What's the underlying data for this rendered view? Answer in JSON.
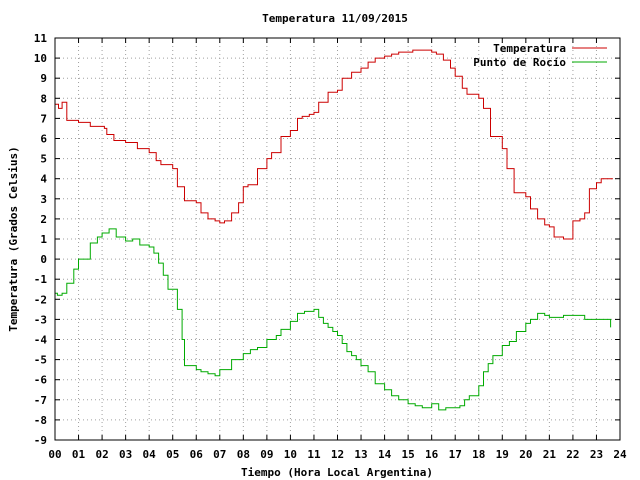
{
  "chart_data": {
    "type": "line",
    "title": "Temperatura 11/09/2015",
    "xlabel": "Tiempo (Hora Local Argentina)",
    "ylabel": "Temperatura (Grados Celsius)",
    "xlim": [
      0,
      24
    ],
    "ylim": [
      -9,
      11
    ],
    "x_ticks": [
      "00",
      "01",
      "02",
      "03",
      "04",
      "05",
      "06",
      "07",
      "08",
      "09",
      "10",
      "11",
      "12",
      "13",
      "14",
      "15",
      "16",
      "17",
      "18",
      "19",
      "20",
      "21",
      "22",
      "23",
      "24"
    ],
    "y_ticks": [
      "11",
      "10",
      "9",
      "8",
      "7",
      "6",
      "5",
      "4",
      "3",
      "2",
      "1",
      "0",
      "-1",
      "-2",
      "-3",
      "-4",
      "-5",
      "-6",
      "-7",
      "-8",
      "-9"
    ],
    "grid": true,
    "legend_position": "top-right",
    "series": [
      {
        "name": "Temperatura",
        "color": "#cc0000",
        "x": [
          0,
          0.15,
          0.3,
          0.5,
          1,
          1.5,
          2,
          2.1,
          2.2,
          2.5,
          3,
          3.5,
          4,
          4.3,
          4.5,
          5,
          5.2,
          5.5,
          6,
          6.2,
          6.5,
          6.8,
          7,
          7.2,
          7.5,
          7.6,
          7.8,
          8,
          8.2,
          8.6,
          9,
          9.2,
          9.6,
          10,
          10.3,
          10.5,
          10.8,
          11,
          11.2,
          11.6,
          12,
          12.2,
          12.6,
          13,
          13.3,
          13.6,
          14,
          14.3,
          14.6,
          15,
          15.2,
          15.6,
          16,
          16.2,
          16.5,
          16.8,
          17,
          17.3,
          17.5,
          18,
          18.2,
          18.5,
          18.8,
          19,
          19.2,
          19.5,
          20,
          20.2,
          20.5,
          20.8,
          21,
          21.2,
          21.6,
          22,
          22.3,
          22.5,
          22.7,
          23,
          23.2,
          23.5,
          23.7
        ],
        "values": [
          7.7,
          7.5,
          7.8,
          6.9,
          6.8,
          6.6,
          6.6,
          6.5,
          6.2,
          5.9,
          5.8,
          5.5,
          5.3,
          4.9,
          4.7,
          4.5,
          3.6,
          2.9,
          2.8,
          2.3,
          2,
          1.9,
          1.8,
          1.9,
          2.3,
          2.3,
          2.8,
          3.6,
          3.7,
          4.5,
          5,
          5.3,
          6.1,
          6.4,
          7,
          7.1,
          7.2,
          7.3,
          7.8,
          8.3,
          8.4,
          9,
          9.3,
          9.5,
          9.8,
          10,
          10.1,
          10.2,
          10.3,
          10.3,
          10.4,
          10.4,
          10.3,
          10.2,
          9.9,
          9.5,
          9.1,
          8.5,
          8.2,
          8,
          7.5,
          6.1,
          6.1,
          5.5,
          4.5,
          3.3,
          3.1,
          2.5,
          2,
          1.7,
          1.6,
          1.1,
          1,
          1.9,
          2,
          2.3,
          3.5,
          3.8,
          4,
          4,
          4
        ]
      },
      {
        "name": "Punto de Rocío",
        "color": "#00aa00",
        "x": [
          0,
          0.1,
          0.3,
          0.5,
          0.8,
          1,
          1.5,
          1.8,
          2,
          2.3,
          2.6,
          2.8,
          3,
          3.3,
          3.6,
          4,
          4.2,
          4.4,
          4.6,
          4.8,
          5,
          5.2,
          5.4,
          5.5,
          6,
          6.2,
          6.5,
          6.8,
          7,
          7.5,
          8,
          8.3,
          8.6,
          9,
          9.4,
          9.6,
          10,
          10.3,
          10.6,
          11,
          11.2,
          11.4,
          11.6,
          11.8,
          12,
          12.2,
          12.4,
          12.6,
          12.8,
          13,
          13.3,
          13.6,
          14,
          14.3,
          14.6,
          15,
          15.3,
          15.6,
          16,
          16.3,
          16.6,
          17,
          17.2,
          17.4,
          17.6,
          18,
          18.2,
          18.4,
          18.6,
          19,
          19.3,
          19.6,
          20,
          20.2,
          20.5,
          20.8,
          21,
          21.3,
          21.6,
          22,
          22.5,
          23,
          23.3,
          23.6
        ],
        "values": [
          -1.7,
          -1.8,
          -1.7,
          -1.2,
          -0.5,
          0,
          0.8,
          1.1,
          1.3,
          1.5,
          1.1,
          1.1,
          0.9,
          1,
          0.7,
          0.6,
          0.3,
          -0.2,
          -0.8,
          -1.5,
          -1.5,
          -2.5,
          -4,
          -5.3,
          -5.5,
          -5.6,
          -5.7,
          -5.8,
          -5.5,
          -5,
          -4.7,
          -4.5,
          -4.4,
          -4,
          -3.8,
          -3.5,
          -3.1,
          -2.7,
          -2.6,
          -2.5,
          -2.9,
          -3.2,
          -3.4,
          -3.6,
          -3.8,
          -4.2,
          -4.6,
          -4.8,
          -5,
          -5.3,
          -5.6,
          -6.2,
          -6.5,
          -6.8,
          -7,
          -7.2,
          -7.3,
          -7.4,
          -7.2,
          -7.5,
          -7.4,
          -7.4,
          -7.3,
          -7,
          -6.8,
          -6.3,
          -5.6,
          -5.2,
          -4.8,
          -4.3,
          -4.1,
          -3.6,
          -3.2,
          -3,
          -2.7,
          -2.8,
          -2.9,
          -2.9,
          -2.8,
          -2.8,
          -3,
          -3,
          -3,
          -3.4
        ]
      }
    ]
  }
}
